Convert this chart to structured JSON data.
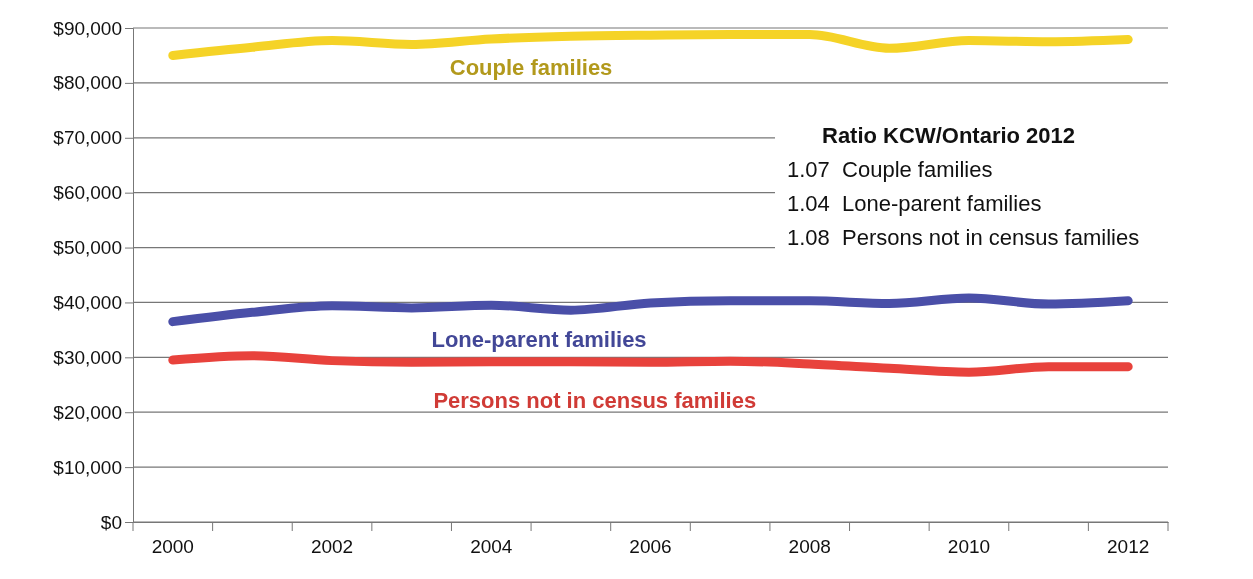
{
  "chart_data": {
    "type": "line",
    "categories": [
      "2000",
      null,
      "2002",
      null,
      "2004",
      null,
      "2006",
      null,
      "2008",
      null,
      "2010",
      null,
      "2012"
    ],
    "series": [
      {
        "name": "Couple families",
        "color": "#f5d327",
        "values": [
          85000,
          86500,
          87700,
          87000,
          88000,
          88500,
          88700,
          88800,
          88800,
          86300,
          87700,
          87500,
          87900
        ]
      },
      {
        "name": "Lone-parent families",
        "color": "#4a4fa8",
        "values": [
          36500,
          38200,
          39400,
          39000,
          39500,
          38600,
          39900,
          40300,
          40300,
          39800,
          40800,
          39700,
          40300
        ]
      },
      {
        "name": "Persons not in census families",
        "color": "#e8423c",
        "values": [
          29500,
          30300,
          29400,
          29100,
          29200,
          29200,
          29100,
          29300,
          28800,
          28000,
          27300,
          28300,
          28300
        ]
      }
    ],
    "ylim": [
      0,
      90000
    ],
    "yticks": [
      {
        "value": 0,
        "label": "$0"
      },
      {
        "value": 10000,
        "label": "$10,000"
      },
      {
        "value": 20000,
        "label": "$20,000"
      },
      {
        "value": 30000,
        "label": "$30,000"
      },
      {
        "value": 40000,
        "label": "$40,000"
      },
      {
        "value": 50000,
        "label": "$50,000"
      },
      {
        "value": 60000,
        "label": "$60,000"
      },
      {
        "value": 70000,
        "label": "$70,000"
      },
      {
        "value": 80000,
        "label": "$80,000"
      },
      {
        "value": 90000,
        "label": "$90,000"
      }
    ],
    "grid": "y",
    "legend": false,
    "marker": "none",
    "line_style": "solid",
    "annotations": [
      "Ratio KCW/Ontario 2012",
      "1.07  Couple families",
      "1.04  Lone-parent families",
      "1.08  Persons not in census families"
    ]
  }
}
